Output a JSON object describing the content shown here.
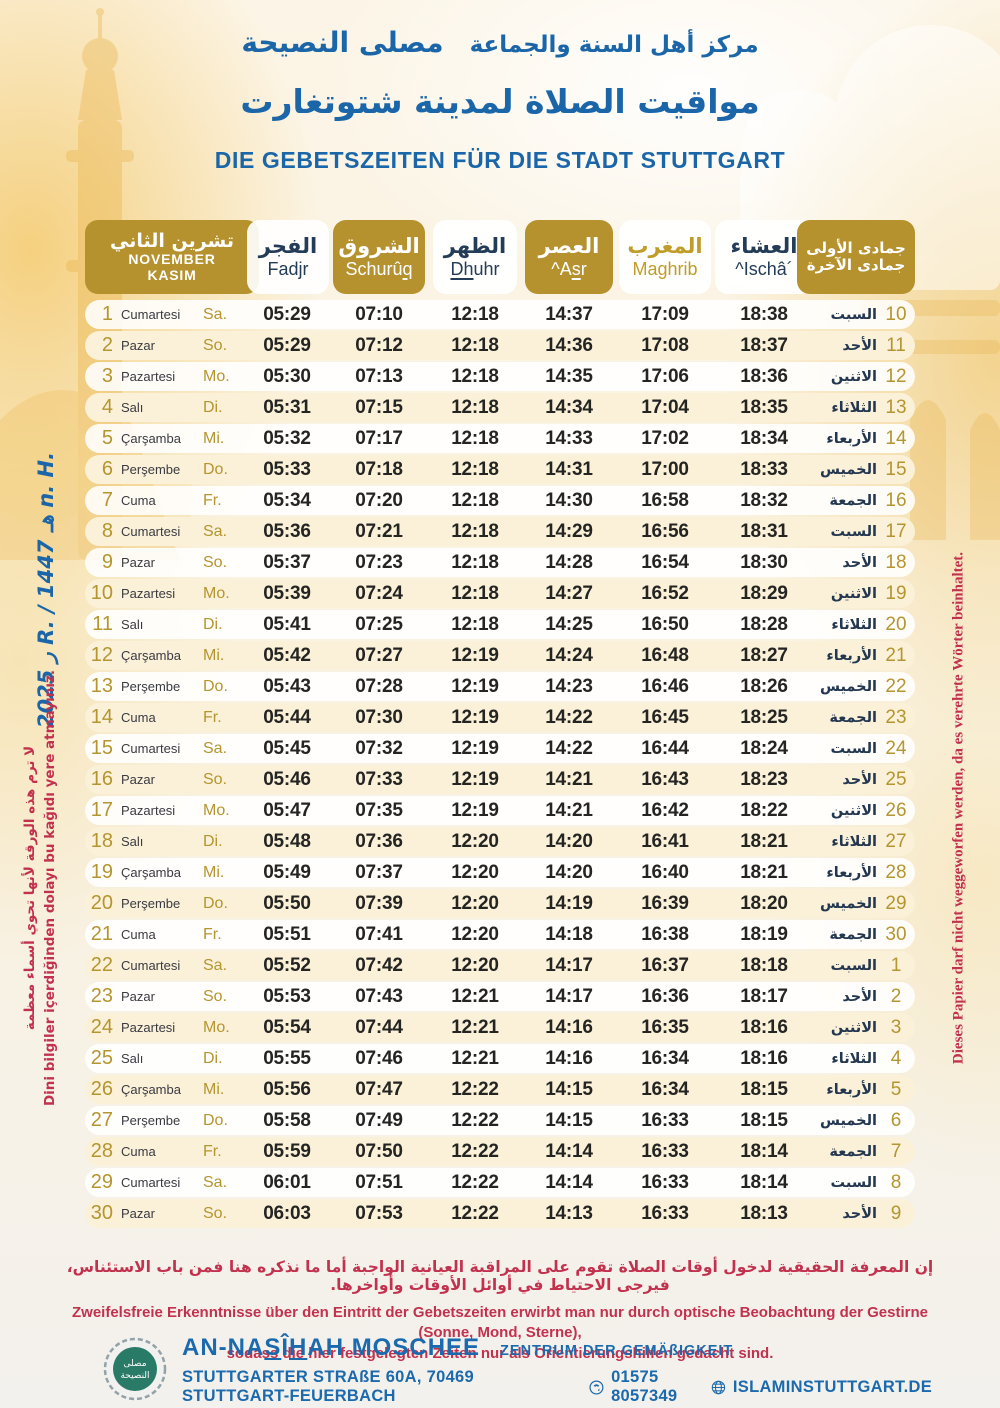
{
  "colors": {
    "blue": "#1a66a8",
    "gold_box": "#b5922e",
    "gold_text": "#b5952f",
    "navy_text": "#233c57",
    "red_note": "#c2314e"
  },
  "header": {
    "org_name_ar": "مصلى النصيحة",
    "org_sub_ar": "مركز أهل السنة والجماعة",
    "title_ar": "مواقيت الصلاة لمدينة شتوتغارت",
    "title_de": "DIE GEBETSZEITEN FÜR DIE STADT STUTTGART"
  },
  "calendar": {
    "month": {
      "ar": "تشرين الثاني",
      "de": "NOVEMBER",
      "tr": "KASIM"
    },
    "hijri_months": {
      "first": "جمادى الأولى",
      "second": "جمادى الآخرة"
    },
    "columns": [
      {
        "key": "fadjr",
        "ar": "الفجر",
        "de": "Fadjr",
        "style": "light",
        "underline": ""
      },
      {
        "key": "schuruq",
        "ar": "الشروق",
        "de": "Schurûq",
        "style": "gold",
        "underline": "q"
      },
      {
        "key": "dhuhr",
        "ar": "الظهر",
        "de": "Dhuhr",
        "style": "light",
        "underline": "Dh"
      },
      {
        "key": "asr",
        "ar": "العصر",
        "de": "^Asr",
        "style": "gold",
        "underline": "s"
      },
      {
        "key": "maghrib",
        "ar": "المغرب",
        "de": "Maghrib",
        "style": "lightgold",
        "underline": ""
      },
      {
        "key": "ischa",
        "ar": "العشاء",
        "de": "^Ischâ´",
        "style": "light",
        "underline": ""
      }
    ],
    "rows": [
      [
        1,
        "Cumartesi",
        "Sa.",
        "05:29",
        "07:10",
        "12:18",
        "14:37",
        "17:09",
        "18:38",
        "السبت",
        10
      ],
      [
        2,
        "Pazar",
        "So.",
        "05:29",
        "07:12",
        "12:18",
        "14:36",
        "17:08",
        "18:37",
        "الأحد",
        11
      ],
      [
        3,
        "Pazartesi",
        "Mo.",
        "05:30",
        "07:13",
        "12:18",
        "14:35",
        "17:06",
        "18:36",
        "الاثنين",
        12
      ],
      [
        4,
        "Salı",
        "Di.",
        "05:31",
        "07:15",
        "12:18",
        "14:34",
        "17:04",
        "18:35",
        "الثلاثاء",
        13
      ],
      [
        5,
        "Çarşamba",
        "Mi.",
        "05:32",
        "07:17",
        "12:18",
        "14:33",
        "17:02",
        "18:34",
        "الأربعاء",
        14
      ],
      [
        6,
        "Perşembe",
        "Do.",
        "05:33",
        "07:18",
        "12:18",
        "14:31",
        "17:00",
        "18:33",
        "الخميس",
        15
      ],
      [
        7,
        "Cuma",
        "Fr.",
        "05:34",
        "07:20",
        "12:18",
        "14:30",
        "16:58",
        "18:32",
        "الجمعة",
        16
      ],
      [
        8,
        "Cumartesi",
        "Sa.",
        "05:36",
        "07:21",
        "12:18",
        "14:29",
        "16:56",
        "18:31",
        "السبت",
        17
      ],
      [
        9,
        "Pazar",
        "So.",
        "05:37",
        "07:23",
        "12:18",
        "14:28",
        "16:54",
        "18:30",
        "الأحد",
        18
      ],
      [
        10,
        "Pazartesi",
        "Mo.",
        "05:39",
        "07:24",
        "12:18",
        "14:27",
        "16:52",
        "18:29",
        "الاثنين",
        19
      ],
      [
        11,
        "Salı",
        "Di.",
        "05:41",
        "07:25",
        "12:18",
        "14:25",
        "16:50",
        "18:28",
        "الثلاثاء",
        20
      ],
      [
        12,
        "Çarşamba",
        "Mi.",
        "05:42",
        "07:27",
        "12:19",
        "14:24",
        "16:48",
        "18:27",
        "الأربعاء",
        21
      ],
      [
        13,
        "Perşembe",
        "Do.",
        "05:43",
        "07:28",
        "12:19",
        "14:23",
        "16:46",
        "18:26",
        "الخميس",
        22
      ],
      [
        14,
        "Cuma",
        "Fr.",
        "05:44",
        "07:30",
        "12:19",
        "14:22",
        "16:45",
        "18:25",
        "الجمعة",
        23
      ],
      [
        15,
        "Cumartesi",
        "Sa.",
        "05:45",
        "07:32",
        "12:19",
        "14:22",
        "16:44",
        "18:24",
        "السبت",
        24
      ],
      [
        16,
        "Pazar",
        "So.",
        "05:46",
        "07:33",
        "12:19",
        "14:21",
        "16:43",
        "18:23",
        "الأحد",
        25
      ],
      [
        17,
        "Pazartesi",
        "Mo.",
        "05:47",
        "07:35",
        "12:19",
        "14:21",
        "16:42",
        "18:22",
        "الاثنين",
        26
      ],
      [
        18,
        "Salı",
        "Di.",
        "05:48",
        "07:36",
        "12:20",
        "14:20",
        "16:41",
        "18:21",
        "الثلاثاء",
        27
      ],
      [
        19,
        "Çarşamba",
        "Mi.",
        "05:49",
        "07:37",
        "12:20",
        "14:20",
        "16:40",
        "18:21",
        "الأربعاء",
        28
      ],
      [
        20,
        "Perşembe",
        "Do.",
        "05:50",
        "07:39",
        "12:20",
        "14:19",
        "16:39",
        "18:20",
        "الخميس",
        29
      ],
      [
        21,
        "Cuma",
        "Fr.",
        "05:51",
        "07:41",
        "12:20",
        "14:18",
        "16:38",
        "18:19",
        "الجمعة",
        30
      ],
      [
        22,
        "Cumartesi",
        "Sa.",
        "05:52",
        "07:42",
        "12:20",
        "14:17",
        "16:37",
        "18:18",
        "السبت",
        1
      ],
      [
        23,
        "Pazar",
        "So.",
        "05:53",
        "07:43",
        "12:21",
        "14:17",
        "16:36",
        "18:17",
        "الأحد",
        2
      ],
      [
        24,
        "Pazartesi",
        "Mo.",
        "05:54",
        "07:44",
        "12:21",
        "14:16",
        "16:35",
        "18:16",
        "الاثنين",
        3
      ],
      [
        25,
        "Salı",
        "Di.",
        "05:55",
        "07:46",
        "12:21",
        "14:16",
        "16:34",
        "18:16",
        "الثلاثاء",
        4
      ],
      [
        26,
        "Çarşamba",
        "Mi.",
        "05:56",
        "07:47",
        "12:22",
        "14:15",
        "16:34",
        "18:15",
        "الأربعاء",
        5
      ],
      [
        27,
        "Perşembe",
        "Do.",
        "05:58",
        "07:49",
        "12:22",
        "14:15",
        "16:33",
        "18:15",
        "الخميس",
        6
      ],
      [
        28,
        "Cuma",
        "Fr.",
        "05:59",
        "07:50",
        "12:22",
        "14:14",
        "16:33",
        "18:14",
        "الجمعة",
        7
      ],
      [
        29,
        "Cumartesi",
        "Sa.",
        "06:01",
        "07:51",
        "12:22",
        "14:14",
        "16:33",
        "18:14",
        "السبت",
        8
      ],
      [
        30,
        "Pazar",
        "So.",
        "06:03",
        "07:53",
        "12:22",
        "14:13",
        "16:33",
        "18:13",
        "الأحد",
        9
      ]
    ]
  },
  "side_notes": {
    "year_note": "ر 2025 R. / هـ 1447 n. H.",
    "left_note_ar": "لا ترم هذه الورقة لأنها تحوي أسماء معظمة",
    "left_note_tr": "Dini bilgiler içerdiğinden dolayı bu kağıdı yere atmayınız.",
    "right_note_de": "Dieses Papier darf nicht weggeworfen werden, da es verehrte Wörter beinhaltet."
  },
  "disclaimer": {
    "ar": "إن المعرفة الحقيقية لدخول أوقات الصلاة تقوم على المراقبة العيانية الواجبة أما ما نذكره هنا فمن باب الاستئناس، فيرجى الاحتياط في أوائل الأوقات وأواخرها.",
    "de_line1": "Zweifelsfreie Erkenntnisse über den Eintritt der Gebetszeiten erwirbt man nur durch optische Beobachtung der Gestirne (Sonne, Mond, Sterne),",
    "de_line2": "sodass die hier festgelegten Zeiten nur als Orientierungshilfen gedacht sind."
  },
  "footer": {
    "name_parts": [
      {
        "t": "AN-NA"
      },
      {
        "t": "S",
        "u": true
      },
      {
        "t": "Î"
      },
      {
        "t": "H",
        "u": true
      },
      {
        "t": "AH MOSCHEE"
      }
    ],
    "subtitle": "ZENTRUM DER GEMÄßIGKEIT",
    "address": "STUTTGARTER STRAßE 60A, 70469 STUTTGART-FEUERBACH",
    "phone": "01575 8057349",
    "website": "ISLAMINSTUTTGART.DE",
    "logo_ar_line1": "مصلى",
    "logo_ar_line2": "النصيحة"
  }
}
